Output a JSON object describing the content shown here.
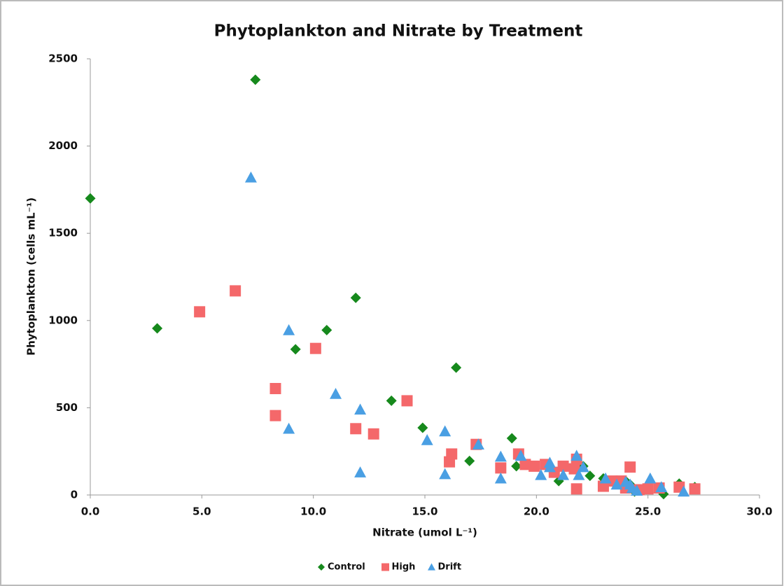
{
  "chart_data": {
    "type": "scatter",
    "title": "Phytoplankton and Nitrate by Treatment",
    "x_label": "Nitrate (umol L⁻¹)",
    "y_label": "Phytoplankton (cells mL⁻¹)",
    "xlim": [
      0,
      30
    ],
    "xticks": [
      {
        "value": 0,
        "label": "0.0"
      },
      {
        "value": 5,
        "label": "5.0"
      },
      {
        "value": 10,
        "label": "10.0"
      },
      {
        "value": 15,
        "label": "15.0"
      },
      {
        "value": 20,
        "label": "20.0"
      },
      {
        "value": 25,
        "label": "25.0"
      },
      {
        "value": 30,
        "label": "30.0"
      }
    ],
    "ylim": [
      0,
      2500
    ],
    "yticks": [
      0,
      500,
      1000,
      1500,
      2000,
      2500
    ],
    "grid": false,
    "legend": "bottom",
    "series": [
      {
        "name": "Control",
        "color": "#16891c",
        "marker": "diamond",
        "x": [
          0,
          3.0,
          7.4,
          9.2,
          10.6,
          11.9,
          13.5,
          14.9,
          16.4,
          17.0,
          18.9,
          19.1,
          21.0,
          22.1,
          22.4,
          23.0,
          24.0,
          24.2,
          24.4,
          25.7,
          26.4,
          27.1
        ],
        "values": [
          1700,
          955,
          2380,
          835,
          945,
          1130,
          540,
          385,
          730,
          195,
          325,
          165,
          80,
          165,
          110,
          95,
          80,
          60,
          20,
          5,
          65,
          45
        ]
      },
      {
        "name": "High",
        "color": "#f4686a",
        "marker": "square",
        "x": [
          4.9,
          6.5,
          8.3,
          8.3,
          10.1,
          11.9,
          12.7,
          14.2,
          16.1,
          16.2,
          17.3,
          18.4,
          19.2,
          19.5,
          19.9,
          20.4,
          20.8,
          21.2,
          21.7,
          21.8,
          21.8,
          23.0,
          23.4,
          23.8,
          24.2,
          24.0,
          24.6,
          25.0,
          25.5,
          26.4,
          27.1
        ],
        "values": [
          1050,
          1170,
          610,
          455,
          840,
          380,
          350,
          540,
          190,
          235,
          290,
          155,
          235,
          175,
          165,
          175,
          130,
          165,
          150,
          205,
          35,
          50,
          80,
          80,
          160,
          40,
          30,
          35,
          40,
          45,
          35
        ]
      },
      {
        "name": "Drift",
        "color": "#4a9fe3",
        "marker": "triangle",
        "x": [
          7.2,
          8.9,
          8.9,
          11.0,
          12.1,
          12.1,
          15.1,
          15.9,
          15.9,
          17.4,
          18.4,
          18.4,
          19.3,
          20.2,
          20.6,
          20.6,
          21.2,
          21.8,
          21.9,
          22.1,
          23.1,
          23.6,
          24.0,
          24.2,
          24.3,
          24.5,
          25.1,
          25.6,
          26.6
        ],
        "values": [
          1820,
          945,
          380,
          580,
          490,
          130,
          315,
          365,
          120,
          290,
          220,
          95,
          225,
          115,
          185,
          160,
          115,
          225,
          115,
          160,
          95,
          60,
          75,
          60,
          40,
          25,
          95,
          45,
          20
        ]
      }
    ]
  }
}
